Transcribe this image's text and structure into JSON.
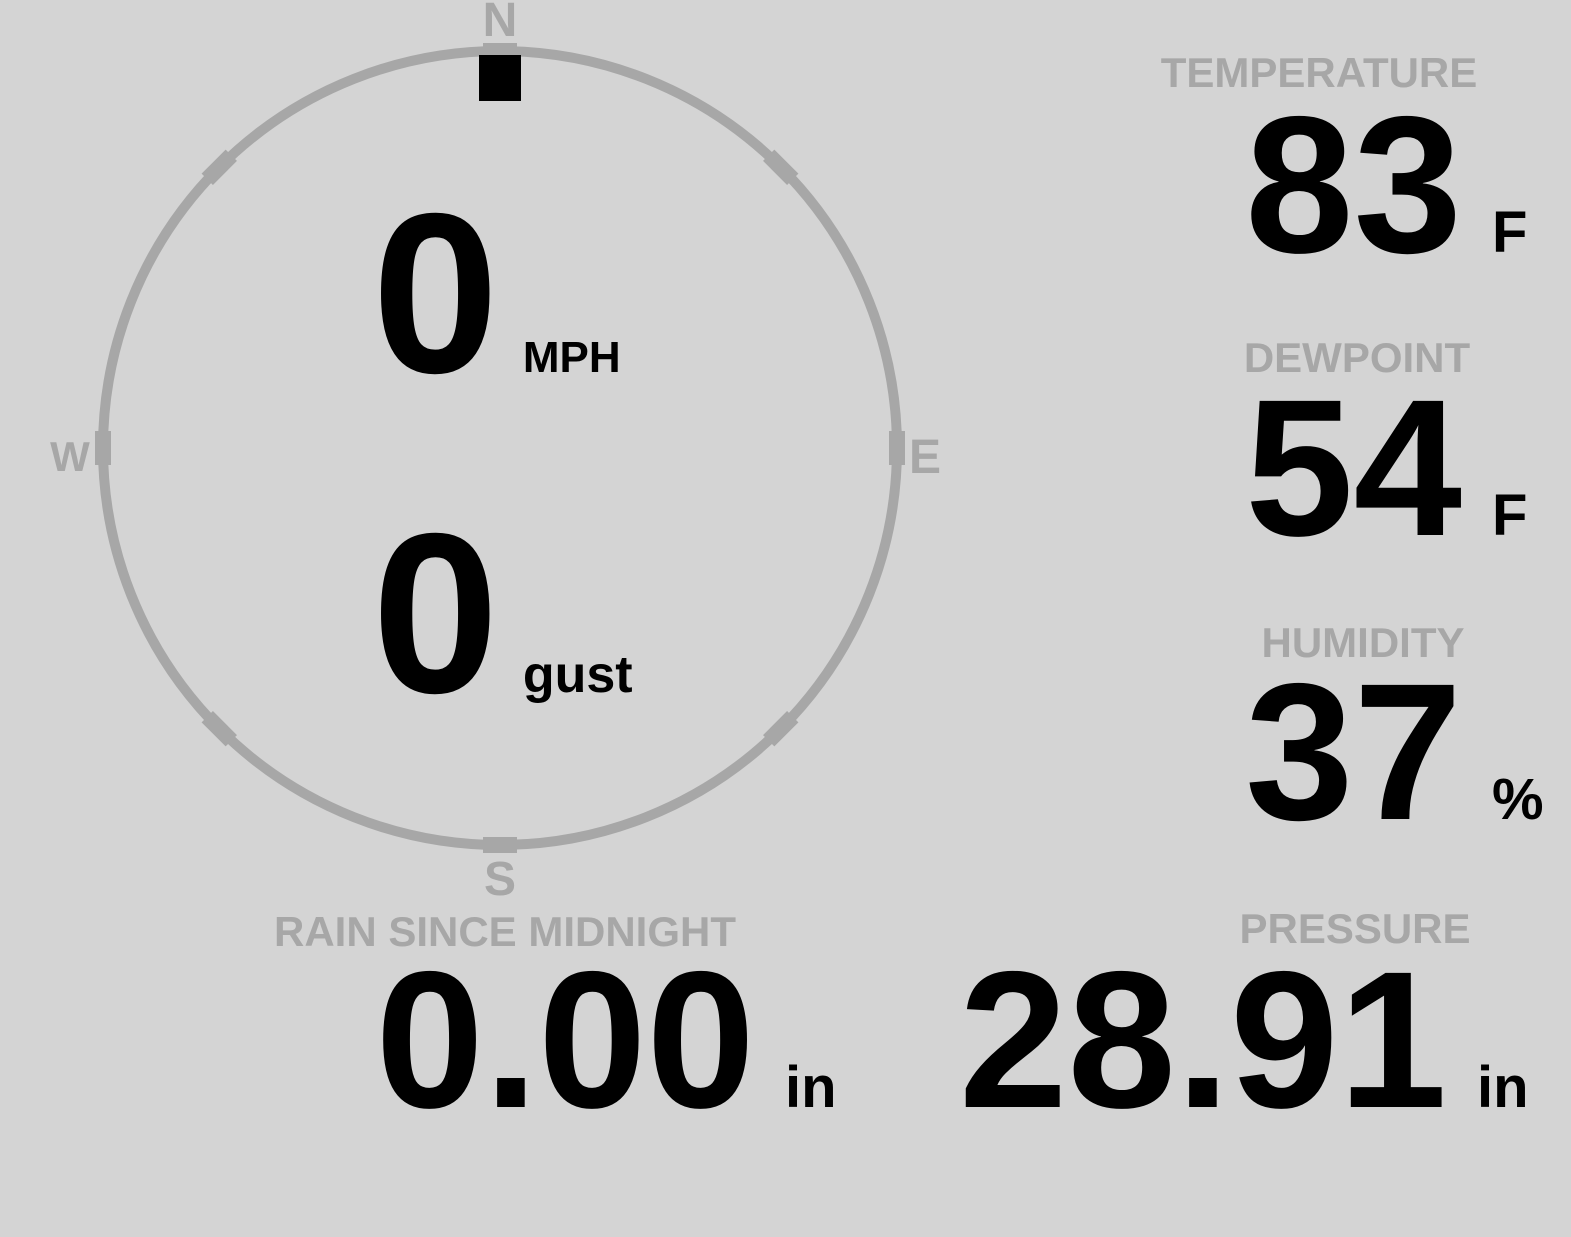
{
  "colors": {
    "background": "#d4d4d4",
    "muted": "#a7a7a7",
    "value": "#000000"
  },
  "compass": {
    "cardinals": {
      "north": "N",
      "east": "E",
      "south": "S",
      "west": "W"
    },
    "wind_direction": "N",
    "speed": {
      "value": "0",
      "unit": "MPH"
    },
    "gust": {
      "value": "0",
      "unit": "gust"
    }
  },
  "metrics": {
    "temperature": {
      "label": "TEMPERATURE",
      "value": "83",
      "unit": "F"
    },
    "dewpoint": {
      "label": "DEWPOINT",
      "value": "54",
      "unit": "F"
    },
    "humidity": {
      "label": "HUMIDITY",
      "value": "37",
      "unit": "%"
    },
    "rain_since_midnight": {
      "label": "RAIN SINCE MIDNIGHT",
      "value": "0.00",
      "unit": "in"
    },
    "pressure": {
      "label": "PRESSURE",
      "value": "28.91",
      "unit": "in"
    }
  }
}
